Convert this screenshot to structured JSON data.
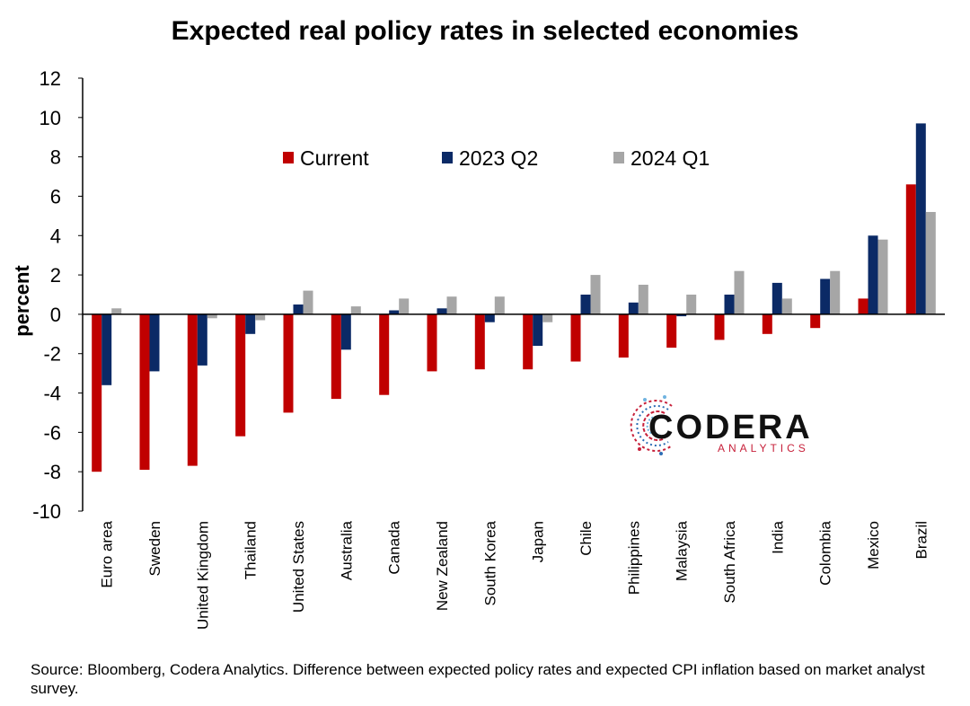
{
  "title": "Expected real policy rates in selected economies",
  "source": "Source: Bloomberg, Codera Analytics. Difference between expected policy rates and expected CPI inflation based on market analyst survey.",
  "logo": {
    "main": "CODERA",
    "sub": "ANALYTICS"
  },
  "colors": {
    "current": "#c00000",
    "q2": "#0b2a66",
    "q1": "#a6a6a6"
  },
  "chart_data": {
    "type": "bar",
    "title": "Expected real policy rates in selected economies",
    "xlabel": "",
    "ylabel": "percent",
    "ylim": [
      -10,
      12
    ],
    "yticks": [
      -10,
      -8,
      -6,
      -4,
      -2,
      0,
      2,
      4,
      6,
      8,
      10,
      12
    ],
    "grid": false,
    "legend": "top-center",
    "categories": [
      "Euro area",
      "Sweden",
      "United Kingdom",
      "Thailand",
      "United States",
      "Australia",
      "Canada",
      "New Zealand",
      "South Korea",
      "Japan",
      "Chile",
      "Philippines",
      "Malaysia",
      "South Africa",
      "India",
      "Colombia",
      "Mexico",
      "Brazil"
    ],
    "series": [
      {
        "name": "Current",
        "color": "#c00000",
        "values": [
          -8.0,
          -7.9,
          -7.7,
          -6.2,
          -5.0,
          -4.3,
          -4.1,
          -2.9,
          -2.8,
          -2.8,
          -2.4,
          -2.2,
          -1.7,
          -1.3,
          -1.0,
          -0.7,
          0.8,
          6.6
        ]
      },
      {
        "name": "2023 Q2",
        "color": "#0b2a66",
        "values": [
          -3.6,
          -2.9,
          -2.6,
          -1.0,
          0.5,
          -1.8,
          0.2,
          0.3,
          -0.4,
          -1.6,
          1.0,
          0.6,
          -0.1,
          1.0,
          1.6,
          1.8,
          4.0,
          9.7
        ]
      },
      {
        "name": "2024 Q1",
        "color": "#a6a6a6",
        "values": [
          0.3,
          0.0,
          -0.2,
          -0.3,
          1.2,
          0.4,
          0.8,
          0.9,
          0.9,
          -0.4,
          2.0,
          1.5,
          1.0,
          2.2,
          0.8,
          2.2,
          3.8,
          5.2
        ]
      }
    ]
  }
}
